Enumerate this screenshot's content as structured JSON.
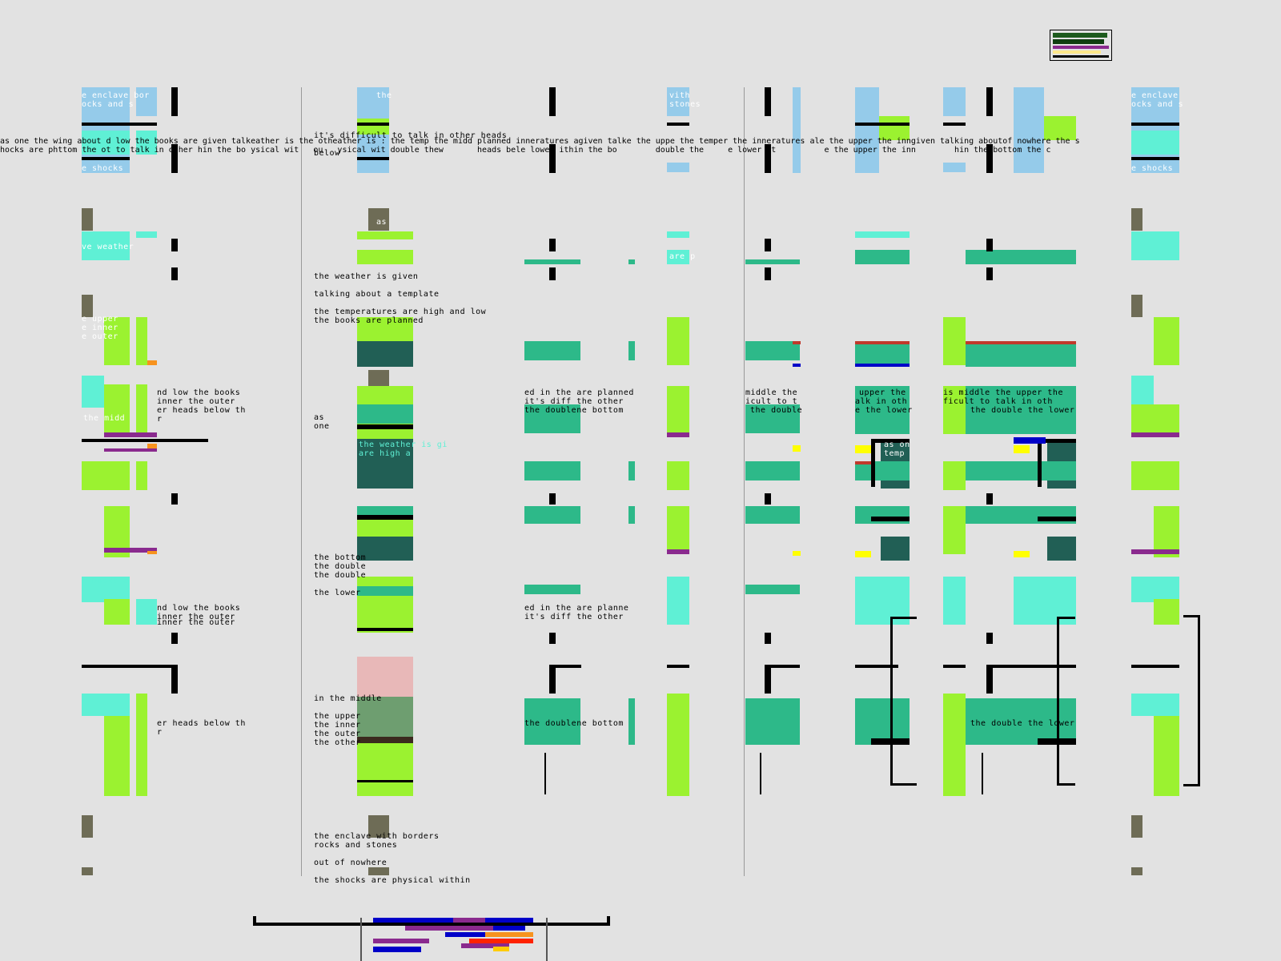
{
  "ticker": {
    "line1": "as one the wing about d low the books are given talkeather is the otheather is : the temp the midd planned inneratures agiven talke the uppe the temper the inneratures ale the upper the inngiven talking aboutof nowhere the s",
    "line2": "hocks are phttom the ot to talk in other hin the bo ysical wit   ou   ysical wit double thew       heads bele lower ithin the bo        double the     e lower it          e the upper the inn        hin the bottom the c"
  },
  "center_blocks": {
    "header": "it's difficult to talk in other heads",
    "header2": "below",
    "b1": [
      "the weather is given",
      "",
      "talking about a template",
      "",
      "the temperatures are high and low",
      "the books are planned"
    ],
    "b2_as": "as",
    "b2_one": "one",
    "b3": [
      "the bottom",
      "the double",
      "the double",
      "",
      "the lower"
    ],
    "b4": [
      "in the middle",
      "",
      "the upper",
      "the inner",
      "the outer",
      "the other"
    ],
    "b5": [
      "the enclave with borders",
      "rocks and stones",
      "",
      "out of nowhere",
      "",
      "the shocks are physical within"
    ]
  },
  "fragments": {
    "left1": "nd low the books",
    "left2": "inner the outer",
    "left3": "er heads below th",
    "left4": "r",
    "left5": "nd low the books",
    "left6": "inner the outer",
    "left7": "inner the outer",
    "left8": "er heads below th",
    "left9": "r",
    "mid1": "ed in the are planned",
    "mid2": "it's diff the other",
    "mid3": "the doublene bottom",
    "mid4": "ed in the are planne",
    "mid5": "it's diff the other",
    "mid6": "the doublene bottom",
    "r1": "middle the",
    "r2": "icult to t",
    "r3": "the double",
    "r4": "upper the",
    "r5": "alk in oth",
    "r6": "e the lower",
    "r7": "is middle the upper the",
    "r8": "ficult to talk in oth",
    "r9": "the double the lower",
    "r10": "the double the lower",
    "tl1": "e enclave bor",
    "tl2": "ocks and s",
    "tl3": "e shocks",
    "tr1": "e enclave",
    "tr2": "ocks and s",
    "tr3": "e shocks",
    "c1": "the",
    "c2": "ve weather",
    "c3": "the midd",
    "c4": "e upper",
    "c5": "e inner",
    "c6": "e outer",
    "c7": "e books a",
    "c8": "as",
    "c9": "vith",
    "c10": "stones",
    "c11": "are p",
    "c12": "the weather is gi",
    "c13": "are high a",
    "c14": "as on",
    "c15": "temp"
  },
  "colors": {
    "bg": "#e2e2e2",
    "sky": "#95cbea",
    "aqua": "#5ff0d5",
    "lime": "#9bf230",
    "teal": "#2db989",
    "dark_teal": "#215f55",
    "olive": "#6e6c56",
    "pink": "#e8b8b8"
  }
}
